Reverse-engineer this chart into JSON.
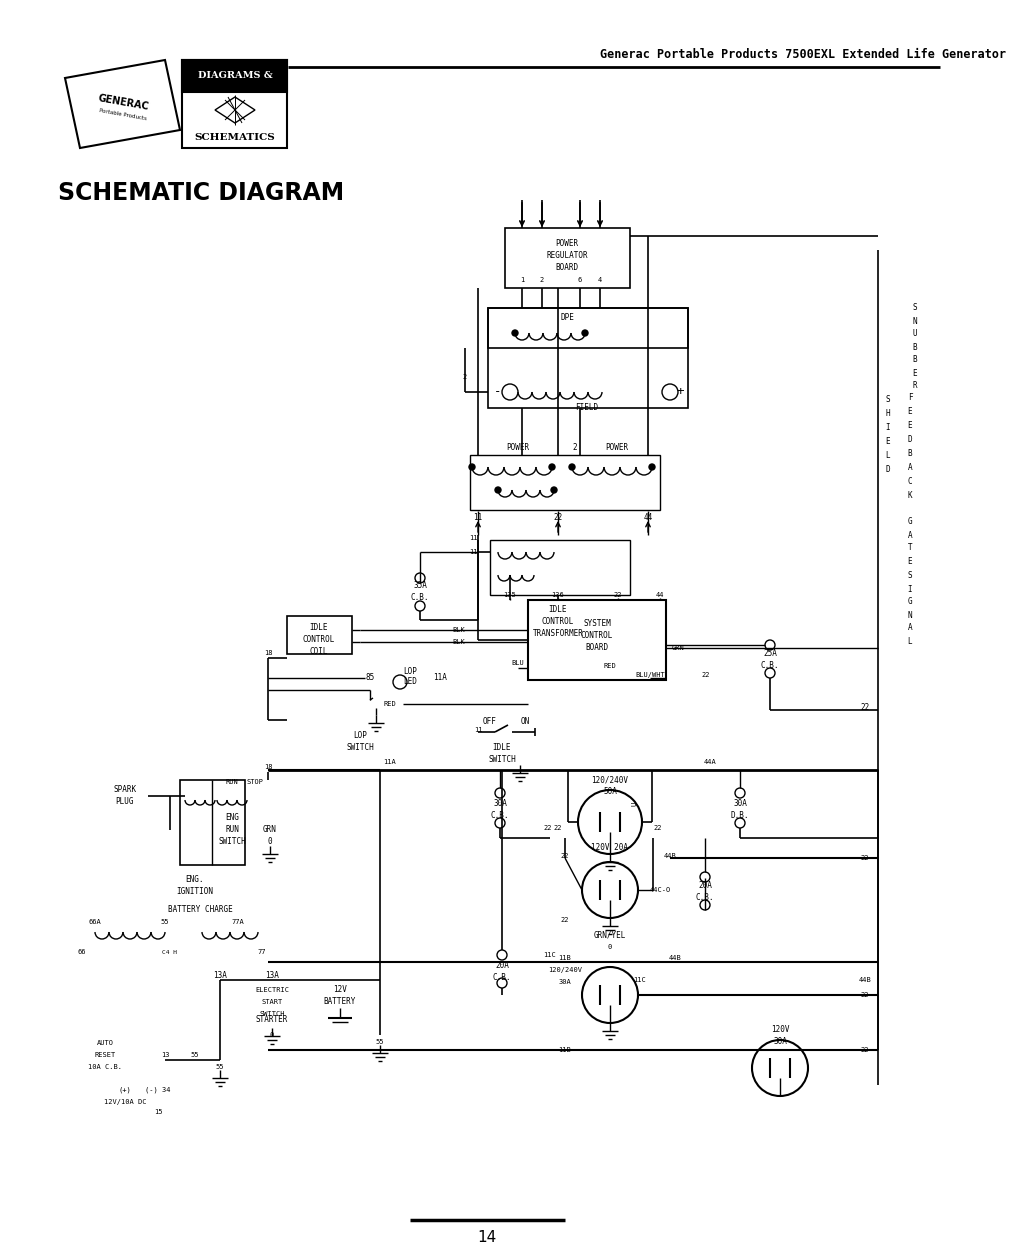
{
  "title": "Generac Portable Products 7500EXL Extended Life Generator",
  "section_title": "SCHEMATIC DIAGRAM",
  "page_number": "14",
  "bg_color": "#ffffff",
  "text_color": "#000000",
  "line_color": "#000000",
  "figsize": [
    9.54,
    12.4
  ],
  "dpi": 100
}
